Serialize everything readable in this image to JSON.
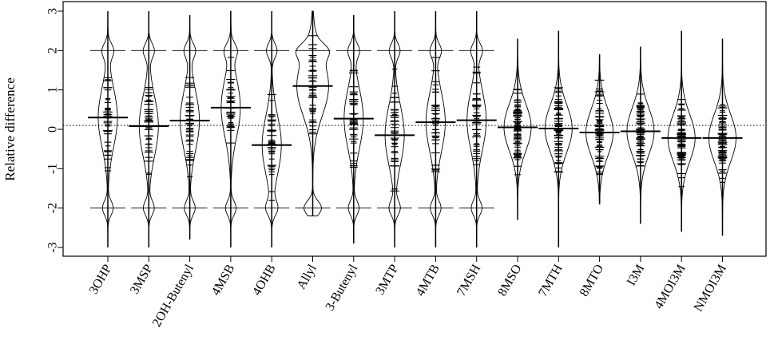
{
  "chart_data": {
    "type": "beanplot",
    "title": "",
    "xlabel": "",
    "ylabel": "Relative difference",
    "ylim": [
      -3,
      3
    ],
    "yticks": [
      -3,
      -2,
      -1,
      0,
      1,
      2,
      3
    ],
    "ytick_labels": [
      "-3",
      "-2",
      "-1",
      "0",
      "1",
      "2",
      "3"
    ],
    "overall_reference": 0.1,
    "categories": [
      "3OHP",
      "3MSP",
      "2OH-Butenyl",
      "4MSB",
      "4OHB",
      "Allyl",
      "3-Butenyl",
      "3MTP",
      "4MTB",
      "7MSH",
      "8MSO",
      "7MTH",
      "8MTO",
      "I3M",
      "4MOI3M",
      "NMOI3M"
    ],
    "series": [
      {
        "category": "3OHP",
        "mean": 0.3,
        "min": -3.0,
        "max": 3.0
      },
      {
        "category": "3MSP",
        "mean": 0.08,
        "min": -3.0,
        "max": 3.0
      },
      {
        "category": "2OH-Butenyl",
        "mean": 0.22,
        "min": -2.8,
        "max": 2.9
      },
      {
        "category": "4MSB",
        "mean": 0.55,
        "min": -3.0,
        "max": 3.0
      },
      {
        "category": "4OHB",
        "mean": -0.4,
        "min": -3.0,
        "max": 3.0
      },
      {
        "category": "Allyl",
        "mean": 1.1,
        "min": -2.2,
        "max": 3.0
      },
      {
        "category": "3-Butenyl",
        "mean": 0.27,
        "min": -2.9,
        "max": 2.9
      },
      {
        "category": "3MTP",
        "mean": -0.15,
        "min": -3.0,
        "max": 3.0
      },
      {
        "category": "4MTB",
        "mean": 0.18,
        "min": -3.0,
        "max": 3.0
      },
      {
        "category": "7MSH",
        "mean": 0.23,
        "min": -3.0,
        "max": 3.0
      },
      {
        "category": "8MSO",
        "mean": 0.05,
        "min": -2.3,
        "max": 2.3
      },
      {
        "category": "7MTH",
        "mean": 0.02,
        "min": -3.0,
        "max": 2.5
      },
      {
        "category": "8MTO",
        "mean": -0.08,
        "min": -1.9,
        "max": 1.9
      },
      {
        "category": "I3M",
        "mean": -0.05,
        "min": -2.4,
        "max": 2.1
      },
      {
        "category": "4MOI3M",
        "mean": -0.22,
        "min": -2.6,
        "max": 2.5
      },
      {
        "category": "NMOI3M",
        "mean": -0.22,
        "min": -2.7,
        "max": 2.3
      }
    ],
    "grid": false,
    "legend": "none"
  }
}
